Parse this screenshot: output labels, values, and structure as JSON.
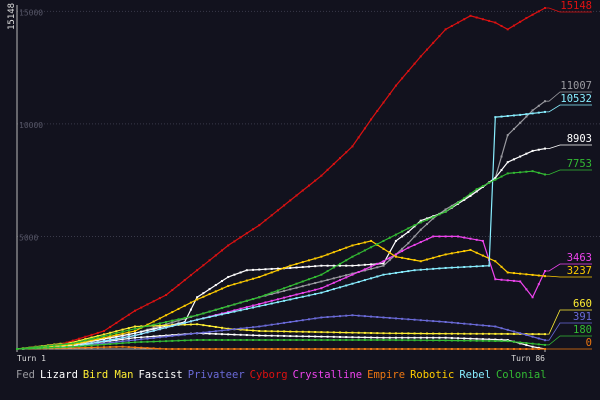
{
  "chart_data": {
    "type": "line",
    "ylabel": "15148",
    "x_start_label": "Turn 1",
    "x_end_label": "Turn 86",
    "xlim": [
      1,
      86
    ],
    "ylim": [
      0,
      15148
    ],
    "yticks": [
      5000,
      10000,
      15000
    ],
    "ytick_labels": [
      "5000",
      "10000",
      "15000"
    ],
    "grid": true,
    "legend_position": "bottom",
    "series": [
      {
        "name": "Fed",
        "color": "#9a9aa0",
        "label": "11007",
        "points": [
          [
            1,
            0
          ],
          [
            10,
            150
          ],
          [
            20,
            700
          ],
          [
            30,
            1500
          ],
          [
            40,
            2300
          ],
          [
            50,
            3000
          ],
          [
            60,
            3700
          ],
          [
            64,
            4700
          ],
          [
            66,
            5300
          ],
          [
            68,
            5800
          ],
          [
            70,
            6200
          ],
          [
            75,
            7000
          ],
          [
            78,
            7600
          ],
          [
            80,
            9500
          ],
          [
            84,
            10600
          ],
          [
            86,
            11007
          ]
        ]
      },
      {
        "name": "Lizard",
        "color": "#ffffff",
        "label": "8903",
        "points": [
          [
            1,
            0
          ],
          [
            10,
            200
          ],
          [
            20,
            700
          ],
          [
            28,
            1200
          ],
          [
            30,
            2300
          ],
          [
            35,
            3200
          ],
          [
            38,
            3500
          ],
          [
            45,
            3600
          ],
          [
            50,
            3700
          ],
          [
            55,
            3700
          ],
          [
            60,
            3800
          ],
          [
            62,
            4800
          ],
          [
            64,
            5200
          ],
          [
            66,
            5700
          ],
          [
            70,
            6100
          ],
          [
            74,
            6800
          ],
          [
            78,
            7600
          ],
          [
            80,
            8300
          ],
          [
            84,
            8800
          ],
          [
            86,
            8903
          ]
        ]
      },
      {
        "name": "Bird Man",
        "color": "#ffee33",
        "label": "660",
        "points": [
          [
            1,
            0
          ],
          [
            10,
            300
          ],
          [
            20,
            1000
          ],
          [
            30,
            1100
          ],
          [
            35,
            900
          ],
          [
            40,
            800
          ],
          [
            50,
            750
          ],
          [
            60,
            700
          ],
          [
            70,
            680
          ],
          [
            80,
            670
          ],
          [
            86,
            660
          ]
        ]
      },
      {
        "name": "Fascist",
        "color": "#ffffff",
        "label": "",
        "points": [
          [
            1,
            0
          ],
          [
            10,
            150
          ],
          [
            20,
            500
          ],
          [
            30,
            700
          ],
          [
            40,
            600
          ],
          [
            50,
            550
          ],
          [
            60,
            500
          ],
          [
            70,
            500
          ],
          [
            80,
            400
          ],
          [
            84,
            100
          ],
          [
            86,
            0
          ]
        ]
      },
      {
        "name": "Privateer",
        "color": "#6a6ad8",
        "label": "391",
        "points": [
          [
            1,
            0
          ],
          [
            10,
            100
          ],
          [
            20,
            400
          ],
          [
            30,
            700
          ],
          [
            40,
            1000
          ],
          [
            50,
            1400
          ],
          [
            55,
            1500
          ],
          [
            60,
            1400
          ],
          [
            70,
            1200
          ],
          [
            78,
            1000
          ],
          [
            82,
            700
          ],
          [
            86,
            391
          ]
        ]
      },
      {
        "name": "Cyborg",
        "color": "#dd1111",
        "label": "15148",
        "points": [
          [
            1,
            0
          ],
          [
            8,
            200
          ],
          [
            15,
            800
          ],
          [
            20,
            1700
          ],
          [
            25,
            2400
          ],
          [
            30,
            3500
          ],
          [
            35,
            4600
          ],
          [
            40,
            5500
          ],
          [
            45,
            6600
          ],
          [
            50,
            7700
          ],
          [
            55,
            9000
          ],
          [
            58,
            10200
          ],
          [
            62,
            11700
          ],
          [
            66,
            13000
          ],
          [
            70,
            14200
          ],
          [
            74,
            14800
          ],
          [
            78,
            14500
          ],
          [
            80,
            14200
          ],
          [
            83,
            14700
          ],
          [
            86,
            15148
          ]
        ]
      },
      {
        "name": "Crystalline",
        "color": "#ee44ee",
        "label": "3463",
        "points": [
          [
            1,
            0
          ],
          [
            10,
            100
          ],
          [
            20,
            600
          ],
          [
            30,
            1300
          ],
          [
            40,
            2000
          ],
          [
            50,
            2700
          ],
          [
            55,
            3300
          ],
          [
            60,
            3900
          ],
          [
            64,
            4500
          ],
          [
            68,
            5000
          ],
          [
            72,
            5000
          ],
          [
            76,
            4800
          ],
          [
            78,
            3100
          ],
          [
            82,
            3000
          ],
          [
            84,
            2300
          ],
          [
            86,
            3463
          ]
        ]
      },
      {
        "name": "Empire",
        "color": "#ee7711",
        "label": "0",
        "points": [
          [
            1,
            0
          ],
          [
            10,
            50
          ],
          [
            18,
            100
          ],
          [
            25,
            0
          ],
          [
            40,
            0
          ],
          [
            50,
            0
          ],
          [
            60,
            0
          ],
          [
            70,
            0
          ],
          [
            80,
            0
          ],
          [
            86,
            0
          ]
        ]
      },
      {
        "name": "Robotic",
        "color": "#ffcc00",
        "label": "3237",
        "points": [
          [
            1,
            0
          ],
          [
            10,
            200
          ],
          [
            20,
            800
          ],
          [
            25,
            1500
          ],
          [
            30,
            2200
          ],
          [
            35,
            2800
          ],
          [
            40,
            3200
          ],
          [
            45,
            3700
          ],
          [
            50,
            4100
          ],
          [
            55,
            4600
          ],
          [
            58,
            4800
          ],
          [
            62,
            4100
          ],
          [
            66,
            3900
          ],
          [
            70,
            4200
          ],
          [
            74,
            4400
          ],
          [
            78,
            3900
          ],
          [
            80,
            3400
          ],
          [
            86,
            3237
          ]
        ]
      },
      {
        "name": "Rebel",
        "color": "#88eeff",
        "label": "10532",
        "points": [
          [
            1,
            0
          ],
          [
            10,
            100
          ],
          [
            20,
            600
          ],
          [
            30,
            1300
          ],
          [
            40,
            1900
          ],
          [
            50,
            2500
          ],
          [
            55,
            2900
          ],
          [
            60,
            3300
          ],
          [
            65,
            3500
          ],
          [
            70,
            3600
          ],
          [
            77,
            3700
          ],
          [
            78,
            10300
          ],
          [
            82,
            10400
          ],
          [
            86,
            10532
          ]
        ]
      },
      {
        "name": "Colonial",
        "color": "#33bb33",
        "label": "7753",
        "points": [
          [
            1,
            0
          ],
          [
            10,
            250
          ],
          [
            20,
            900
          ],
          [
            30,
            1500
          ],
          [
            40,
            2300
          ],
          [
            45,
            2800
          ],
          [
            50,
            3300
          ],
          [
            55,
            4100
          ],
          [
            60,
            4800
          ],
          [
            65,
            5500
          ],
          [
            70,
            6100
          ],
          [
            75,
            7100
          ],
          [
            80,
            7800
          ],
          [
            84,
            7900
          ],
          [
            86,
            7753
          ]
        ]
      },
      {
        "name": "Fed",
        "color": "#33bb33",
        "label": "180",
        "points": [
          [
            1,
            0
          ],
          [
            10,
            100
          ],
          [
            20,
            300
          ],
          [
            30,
            400
          ],
          [
            40,
            400
          ],
          [
            50,
            400
          ],
          [
            60,
            400
          ],
          [
            70,
            380
          ],
          [
            80,
            350
          ],
          [
            86,
            180
          ]
        ]
      }
    ]
  },
  "legend": [
    {
      "label": "Fed",
      "color": "#9a9aa0"
    },
    {
      "label": "Lizard",
      "color": "#ffffff"
    },
    {
      "label": "Bird Man",
      "color": "#ffee33"
    },
    {
      "label": "Fascist",
      "color": "#ffffff"
    },
    {
      "label": "Privateer",
      "color": "#6a6ad8"
    },
    {
      "label": "Cyborg",
      "color": "#dd1111"
    },
    {
      "label": "Crystalline",
      "color": "#ee44ee"
    },
    {
      "label": "Empire",
      "color": "#ee7711"
    },
    {
      "label": "Robotic",
      "color": "#ffcc00"
    },
    {
      "label": "Rebel",
      "color": "#88eeff"
    },
    {
      "label": "Colonial",
      "color": "#33bb33"
    }
  ],
  "colors": {
    "background": "#12121e",
    "grid": "#3a3a4a",
    "axis": "#bbbbbb",
    "tick_text": "#555566"
  }
}
